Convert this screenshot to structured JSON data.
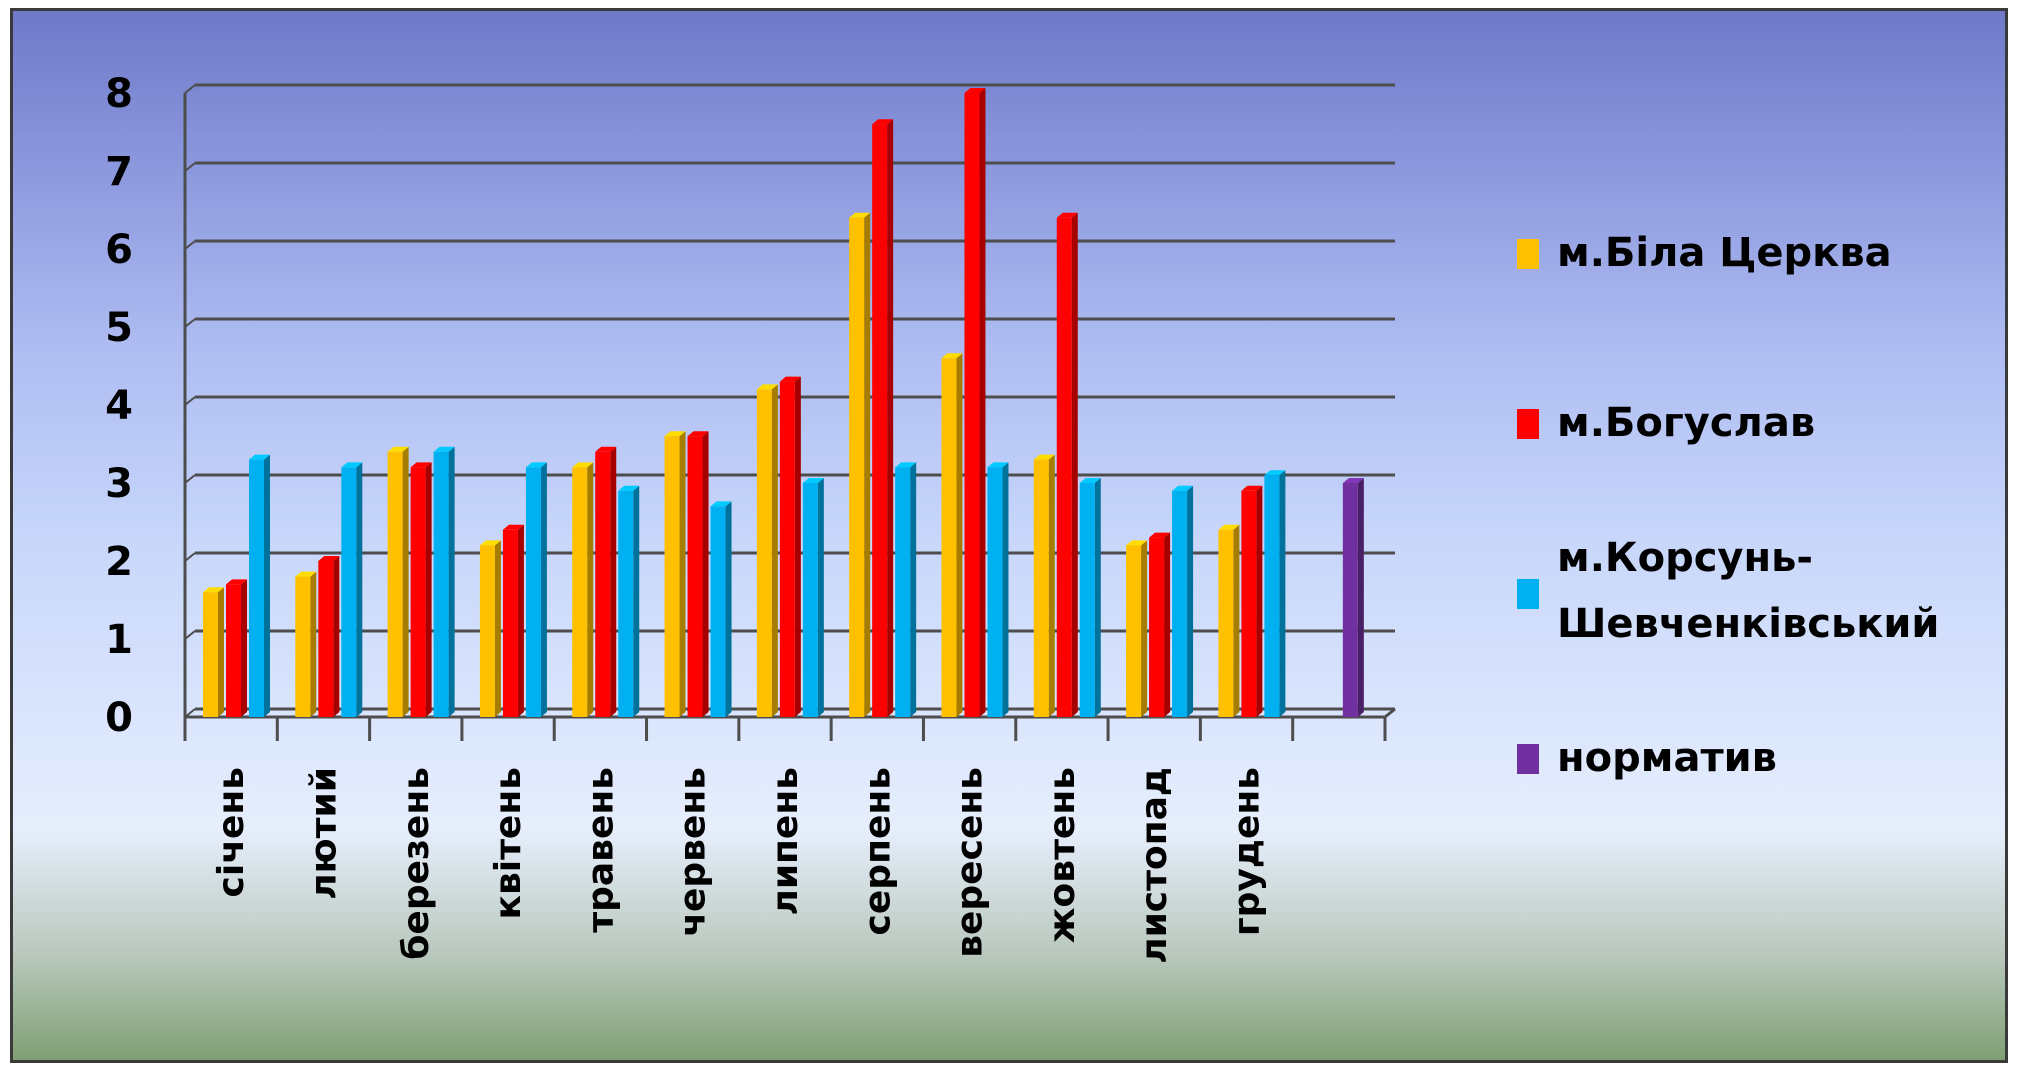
{
  "chart_data": {
    "type": "bar",
    "title": "",
    "xlabel": "",
    "ylabel": "",
    "ylim": [
      0,
      8
    ],
    "yticks": [
      "0",
      "1",
      "2",
      "3",
      "4",
      "5",
      "6",
      "7",
      "8"
    ],
    "grid": true,
    "legend_position": "right",
    "categories": [
      "січень",
      "лютий",
      "березень",
      "квітень",
      "травень",
      "червень",
      "липень",
      "серпень",
      "вересень",
      "жовтень",
      "листопад",
      "грудень",
      ""
    ],
    "series": [
      {
        "name": "м.Біла Церква",
        "color": "#ffc000",
        "values": [
          1.6,
          1.8,
          3.4,
          2.2,
          3.2,
          3.6,
          4.2,
          6.4,
          4.6,
          3.3,
          2.2,
          2.4,
          null
        ]
      },
      {
        "name": "м.Богуслав",
        "color": "#ff0000",
        "values": [
          1.7,
          2.0,
          3.2,
          2.4,
          3.4,
          3.6,
          4.3,
          7.6,
          8.0,
          6.4,
          2.3,
          2.9,
          null
        ]
      },
      {
        "name": "м.Корсунь-Шевченківський",
        "name_lines": [
          "м.Корсунь-",
          "Шевченківський"
        ],
        "color": "#00b0f0",
        "values": [
          3.3,
          3.2,
          3.4,
          3.2,
          2.9,
          2.7,
          3.0,
          3.2,
          3.2,
          3.0,
          2.9,
          3.1,
          null
        ]
      },
      {
        "name": "норматив",
        "color": "#7030a0",
        "values": [
          null,
          null,
          null,
          null,
          null,
          null,
          null,
          null,
          null,
          null,
          null,
          null,
          3.0
        ]
      }
    ]
  }
}
